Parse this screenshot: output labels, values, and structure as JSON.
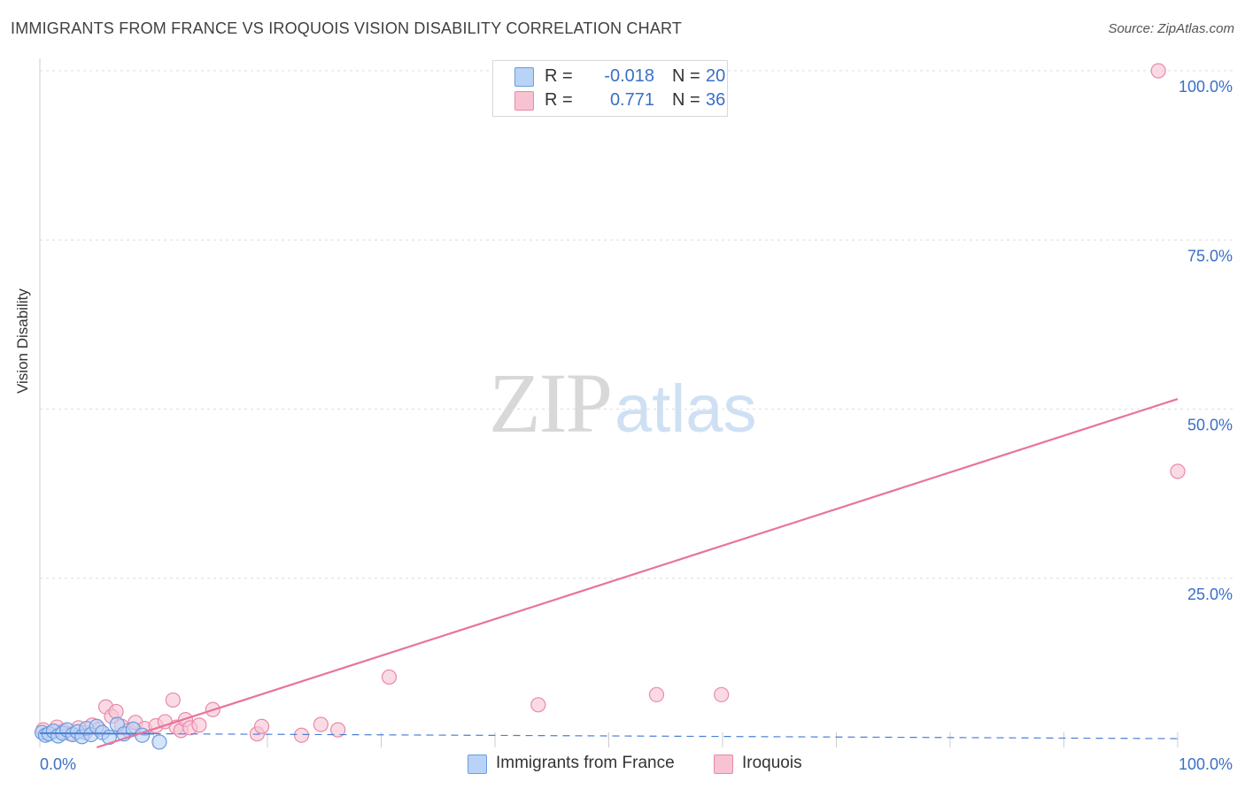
{
  "header": {
    "title": "IMMIGRANTS FROM FRANCE VS IROQUOIS VISION DISABILITY CORRELATION CHART",
    "source": "Source: ZipAtlas.com"
  },
  "watermark": {
    "zip": "ZIP",
    "atlas": "atlas"
  },
  "legend_top": {
    "rows": [
      {
        "r_label": "R =",
        "r_value": "-0.018",
        "n_label": "N =",
        "n_value": "20"
      },
      {
        "r_label": "R =",
        "r_value": "0.771",
        "n_label": "N =",
        "n_value": "36"
      }
    ]
  },
  "legend_bottom": [
    {
      "label": "Immigrants from France"
    },
    {
      "label": "Iroquois"
    }
  ],
  "colors": {
    "blue_fill": "#b8d3f5",
    "blue_stroke": "#6a9be0",
    "blue_line": "#4b7fd6",
    "pink_fill": "#f7c3d3",
    "pink_stroke": "#e98aa8",
    "pink_line": "#e8749c",
    "axis_label": "#3a6fc9",
    "grid": "#dcdcdc"
  },
  "chart_data": {
    "type": "scatter",
    "title": "IMMIGRANTS FROM FRANCE VS IROQUOIS VISION DISABILITY CORRELATION CHART",
    "xlabel": "",
    "ylabel": "Vision Disability",
    "xlim": [
      0,
      100
    ],
    "ylim": [
      0,
      100
    ],
    "x_tick_labels": [
      "0.0%",
      "100.0%"
    ],
    "y_tick_labels": [
      "25.0%",
      "50.0%",
      "75.0%",
      "100.0%"
    ],
    "y_ticks": [
      25,
      50,
      75,
      100
    ],
    "grid": true,
    "legend_position": "top-center",
    "series": [
      {
        "name": "Immigrants from France",
        "r": -0.018,
        "n": 20,
        "trend": {
          "x": [
            0,
            100
          ],
          "y": [
            2.1,
            1.3
          ],
          "style": "solid-then-dashed",
          "solid_until_x": 10
        },
        "points": [
          [
            0.2,
            2.2
          ],
          [
            0.5,
            1.8
          ],
          [
            0.8,
            2.0
          ],
          [
            1.2,
            2.4
          ],
          [
            1.6,
            1.7
          ],
          [
            2.0,
            2.1
          ],
          [
            2.4,
            2.6
          ],
          [
            2.9,
            1.9
          ],
          [
            3.3,
            2.3
          ],
          [
            3.7,
            1.6
          ],
          [
            4.1,
            2.8
          ],
          [
            4.5,
            1.9
          ],
          [
            5.0,
            3.1
          ],
          [
            5.5,
            2.2
          ],
          [
            6.1,
            1.5
          ],
          [
            6.8,
            3.4
          ],
          [
            7.4,
            2.0
          ],
          [
            8.2,
            2.7
          ],
          [
            9.0,
            1.8
          ],
          [
            10.5,
            0.8
          ]
        ]
      },
      {
        "name": "Iroquois",
        "r": 0.771,
        "n": 36,
        "trend": {
          "x": [
            5,
            100
          ],
          "y": [
            0,
            51.5
          ],
          "style": "solid"
        },
        "points": [
          [
            0.3,
            2.6
          ],
          [
            0.9,
            2.1
          ],
          [
            1.5,
            3.0
          ],
          [
            2.1,
            2.4
          ],
          [
            2.7,
            2.0
          ],
          [
            3.4,
            2.9
          ],
          [
            4.0,
            2.2
          ],
          [
            4.6,
            3.3
          ],
          [
            5.2,
            2.7
          ],
          [
            5.8,
            6.0
          ],
          [
            6.3,
            4.6
          ],
          [
            6.7,
            5.3
          ],
          [
            7.2,
            3.1
          ],
          [
            7.8,
            2.5
          ],
          [
            8.4,
            3.7
          ],
          [
            9.2,
            2.8
          ],
          [
            10.2,
            3.2
          ],
          [
            11.0,
            3.8
          ],
          [
            12.0,
            3.0
          ],
          [
            11.7,
            7.0
          ],
          [
            12.4,
            2.5
          ],
          [
            12.8,
            4.1
          ],
          [
            13.2,
            2.9
          ],
          [
            14.0,
            3.3
          ],
          [
            15.2,
            5.6
          ],
          [
            19.1,
            2.0
          ],
          [
            19.5,
            3.1
          ],
          [
            23.0,
            1.8
          ],
          [
            24.7,
            3.4
          ],
          [
            26.2,
            2.6
          ],
          [
            30.7,
            10.4
          ],
          [
            43.8,
            6.3
          ],
          [
            54.2,
            7.8
          ],
          [
            59.9,
            7.8
          ],
          [
            98.3,
            100.0
          ],
          [
            100.0,
            40.8
          ]
        ]
      }
    ]
  }
}
